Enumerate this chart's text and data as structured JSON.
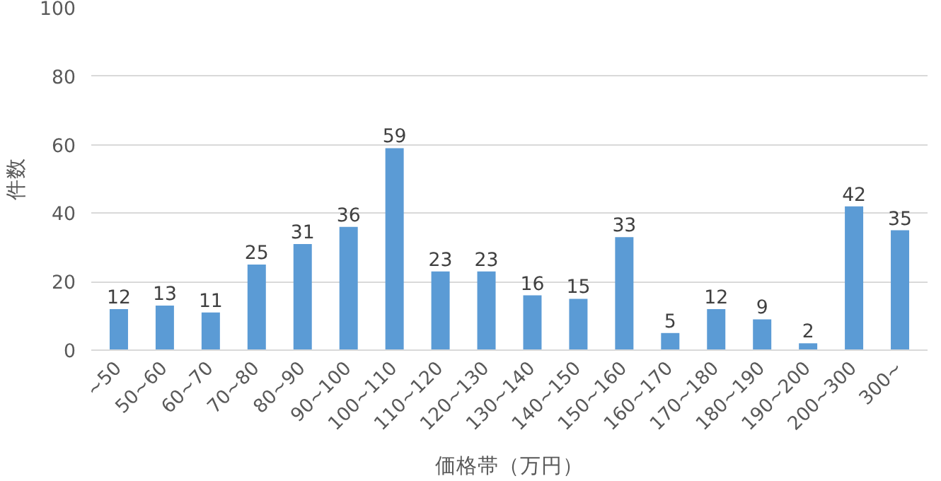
{
  "chart_data": {
    "type": "bar",
    "xlabel": "価格帯（万円）",
    "ylabel": "件数",
    "categories": [
      "~50",
      "50~60",
      "60~70",
      "70~80",
      "80~90",
      "90~100",
      "100~110",
      "110~120",
      "120~130",
      "130~140",
      "140~150",
      "150~160",
      "160~170",
      "170~180",
      "180~190",
      "190~200",
      "200~300",
      "300~"
    ],
    "values": [
      12,
      13,
      11,
      25,
      31,
      36,
      59,
      23,
      23,
      16,
      15,
      33,
      5,
      12,
      9,
      2,
      42,
      35
    ],
    "color": "#5b9bd5",
    "ylim": [
      0,
      100
    ],
    "yticks": [
      0,
      20,
      40,
      60,
      80,
      100
    ],
    "grid": "y",
    "data_labels": true
  }
}
